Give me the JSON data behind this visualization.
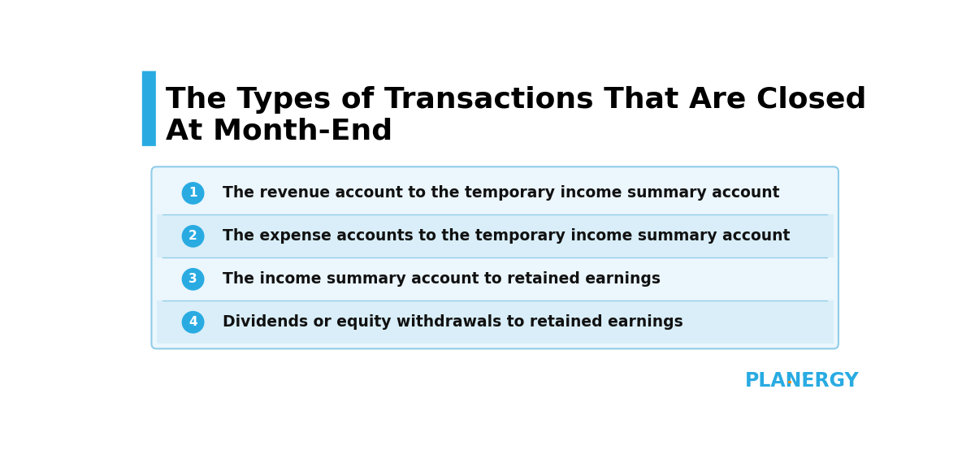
{
  "title_line1": "The Types of Transactions That Are Closed",
  "title_line2": "At Month-End",
  "title_color": "#000000",
  "title_fontsize": 26,
  "accent_bar_color": "#29ABE2",
  "items": [
    "The revenue account to the temporary income summary account",
    "The expense accounts to the temporary income summary account",
    "The income summary account to retained earnings",
    "Dividends or equity withdrawals to retained earnings"
  ],
  "item_fontsize": 13.5,
  "item_color": "#111111",
  "circle_color": "#29ABE2",
  "circle_text_color": "#ffffff",
  "circle_fontsize": 11,
  "box_bg_color": "#EBF6FD",
  "box_border_color": "#90CCE8",
  "row_colors": [
    "#EBF6FD",
    "#D9EEF8",
    "#EBF6FD",
    "#D9EEF8"
  ],
  "planergy_blue": "#29ABE2",
  "planergy_orange": "#F7941D",
  "planergy_fontsize": 17,
  "bg_color": "#ffffff"
}
